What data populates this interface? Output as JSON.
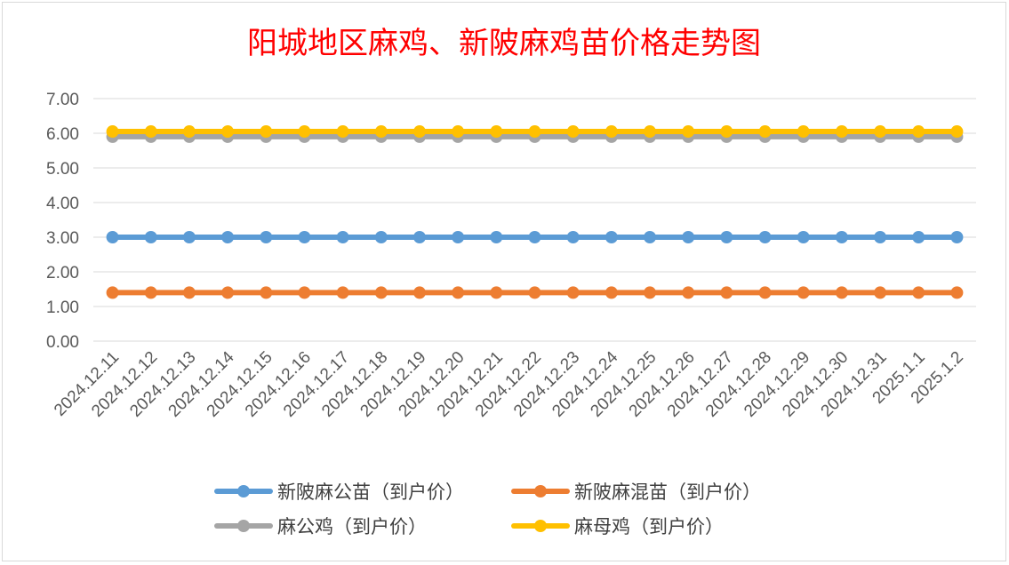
{
  "chart_data": {
    "type": "line",
    "title": "阳城地区麻鸡、新陂麻鸡苗价格走势图",
    "xlabel": "",
    "ylabel": "",
    "ylim": [
      0,
      7
    ],
    "yticks": [
      "0.00",
      "1.00",
      "2.00",
      "3.00",
      "4.00",
      "5.00",
      "6.00",
      "7.00"
    ],
    "grid": true,
    "legend_position": "bottom",
    "categories": [
      "2024.12.11",
      "2024.12.12",
      "2024.12.13",
      "2024.12.14",
      "2024.12.15",
      "2024.12.16",
      "2024.12.17",
      "2024.12.18",
      "2024.12.19",
      "2024.12.20",
      "2024.12.21",
      "2024.12.22",
      "2024.12.23",
      "2024.12.24",
      "2024.12.25",
      "2024.12.26",
      "2024.12.27",
      "2024.12.28",
      "2024.12.29",
      "2024.12.30",
      "2024.12.31",
      "2025.1.1",
      "2025.1.2"
    ],
    "series": [
      {
        "name": "新陂麻公苗（到户价）",
        "color": "#5b9bd5",
        "values": [
          3.0,
          3.0,
          3.0,
          3.0,
          3.0,
          3.0,
          3.0,
          3.0,
          3.0,
          3.0,
          3.0,
          3.0,
          3.0,
          3.0,
          3.0,
          3.0,
          3.0,
          3.0,
          3.0,
          3.0,
          3.0,
          3.0,
          3.0
        ]
      },
      {
        "name": "新陂麻混苗（到户价）",
        "color": "#ed7d31",
        "values": [
          1.4,
          1.4,
          1.4,
          1.4,
          1.4,
          1.4,
          1.4,
          1.4,
          1.4,
          1.4,
          1.4,
          1.4,
          1.4,
          1.4,
          1.4,
          1.4,
          1.4,
          1.4,
          1.4,
          1.4,
          1.4,
          1.4,
          1.4
        ]
      },
      {
        "name": "麻公鸡（到户价）",
        "color": "#a5a5a5",
        "values": [
          5.9,
          5.9,
          5.9,
          5.9,
          5.9,
          5.9,
          5.9,
          5.9,
          5.9,
          5.9,
          5.9,
          5.9,
          5.9,
          5.9,
          5.9,
          5.9,
          5.9,
          5.9,
          5.9,
          5.9,
          5.9,
          5.9,
          5.9
        ]
      },
      {
        "name": "麻母鸡（到户价）",
        "color": "#ffc000",
        "values": [
          6.05,
          6.05,
          6.05,
          6.05,
          6.05,
          6.05,
          6.05,
          6.05,
          6.05,
          6.05,
          6.05,
          6.05,
          6.05,
          6.05,
          6.05,
          6.05,
          6.05,
          6.05,
          6.05,
          6.05,
          6.05,
          6.05,
          6.05
        ]
      }
    ]
  }
}
